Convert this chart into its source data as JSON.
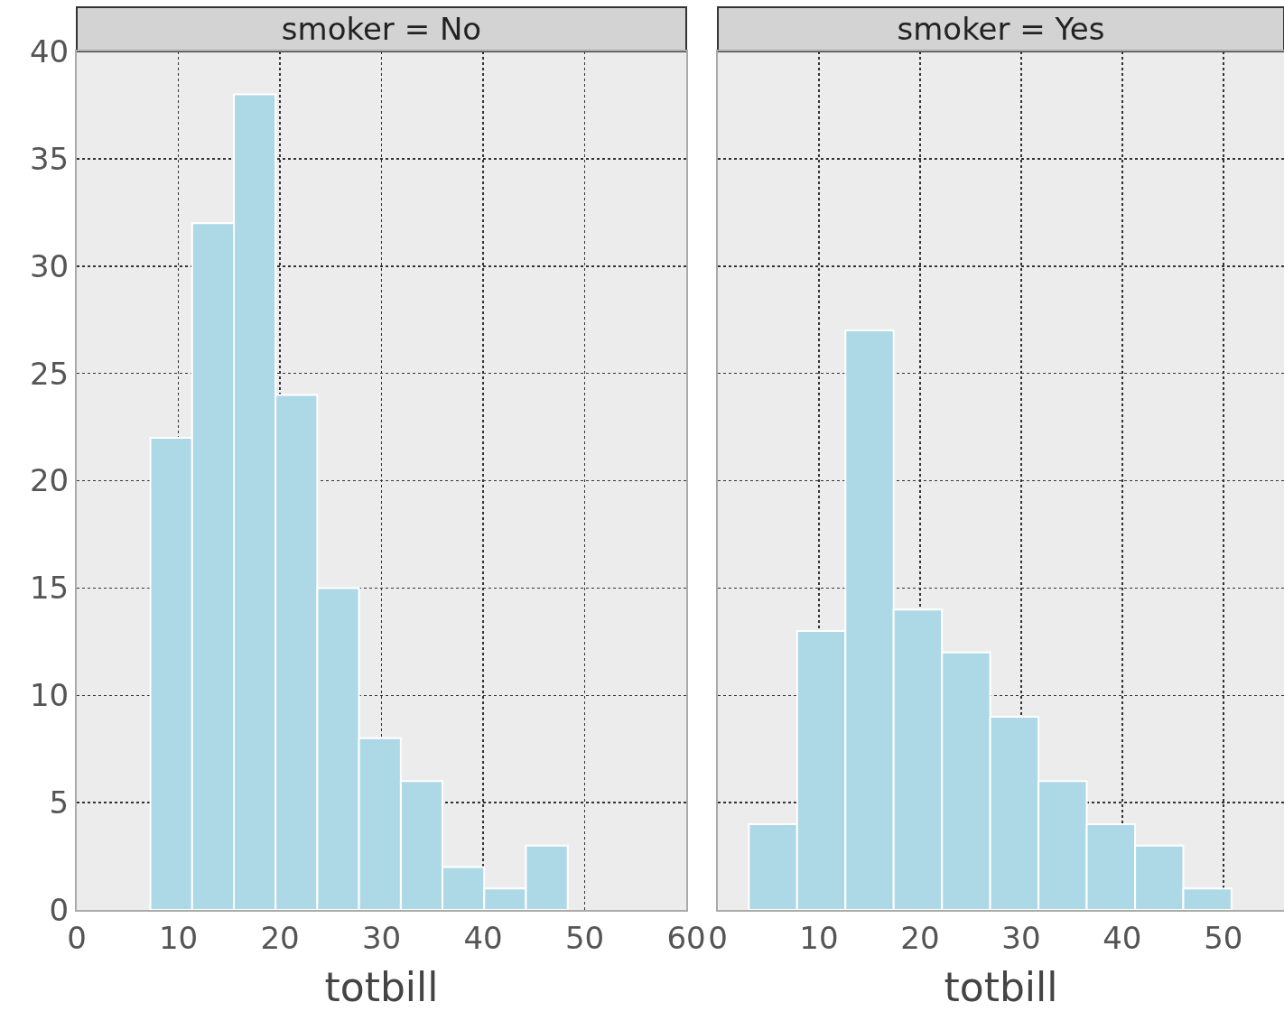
{
  "chart_data": [
    {
      "type": "histogram",
      "title": "smoker = No",
      "xlabel": "totbill",
      "bins": [
        7.25,
        11.36,
        15.47,
        19.57,
        23.68,
        27.79,
        31.9,
        36.0,
        40.11,
        44.22,
        48.33
      ],
      "values": [
        22,
        32,
        38,
        24,
        15,
        8,
        6,
        2,
        1,
        3
      ],
      "color": "#add8e6",
      "xlim": [
        0,
        60
      ],
      "xticks": [
        0,
        10,
        20,
        30,
        40,
        50,
        60
      ],
      "ylim": [
        0,
        40
      ],
      "yticks": [
        0,
        5,
        10,
        15,
        20,
        25,
        30,
        35,
        40
      ],
      "grid": true
    },
    {
      "type": "histogram",
      "title": "smoker = Yes",
      "xlabel": "totbill",
      "bins": [
        3.07,
        7.84,
        12.62,
        17.39,
        22.17,
        26.94,
        31.72,
        36.49,
        41.27,
        46.04,
        50.81
      ],
      "values": [
        4,
        13,
        27,
        14,
        12,
        9,
        6,
        4,
        3,
        1
      ],
      "color": "#add8e6",
      "xlim": [
        0,
        56
      ],
      "xticks": [
        0,
        10,
        20,
        30,
        40,
        50
      ],
      "ylim": [
        0,
        40
      ],
      "yticks": [
        0,
        5,
        10,
        15,
        20,
        25,
        30,
        35,
        40
      ],
      "grid": true,
      "tick_labels": "x"
    }
  ]
}
